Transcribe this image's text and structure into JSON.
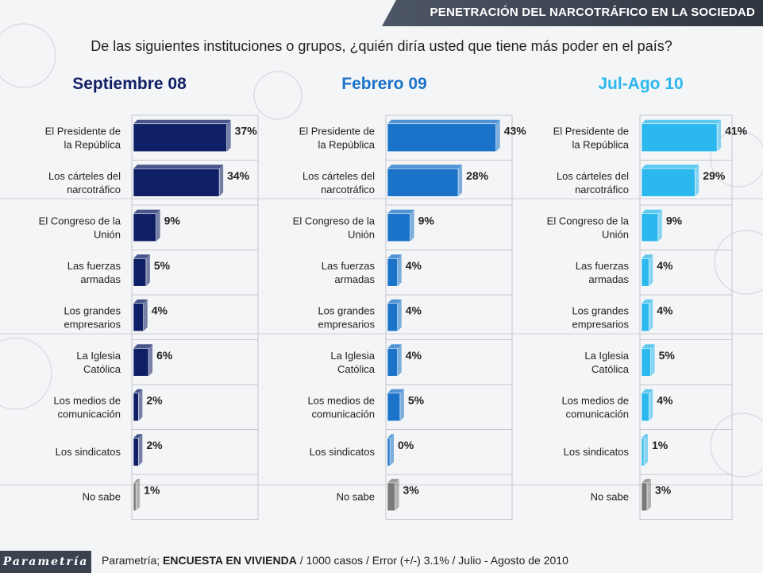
{
  "header": {
    "title": "PENETRACIÓN DEL NARCOTRÁFICO EN LA SOCIEDAD"
  },
  "question": "De las siguientes instituciones o grupos, ¿quién diría usted que tiene más poder en el país?",
  "footer": {
    "source": "Parametría; ",
    "survey": "ENCUESTA EN VIVIENDA",
    "details": " / 1000 casos / Error (+/-) 3.1% / Julio - Agosto de 2010",
    "logo": "Parametría"
  },
  "chart_data": [
    {
      "type": "bar",
      "orientation": "horizontal",
      "title": "Septiembre 08",
      "color": "#0f1f66",
      "categories": [
        "El Presidente de la República",
        "Los cárteles del narcotráfico",
        "El Congreso de la Unión",
        "Las fuerzas armadas",
        "Los grandes empresarios",
        "La Iglesia Católica",
        "Los medios de comunicación",
        "Los sindicatos",
        "No sabe"
      ],
      "values": [
        37,
        34,
        9,
        5,
        4,
        6,
        2,
        2,
        1
      ],
      "labels": [
        "37%",
        "34%",
        "9%",
        "5%",
        "4%",
        "6%",
        "2%",
        "2%",
        "1%"
      ],
      "xlim": [
        0,
        50
      ]
    },
    {
      "type": "bar",
      "orientation": "horizontal",
      "title": "Febrero 09",
      "color": "#1a73c9",
      "categories": [
        "El Presidente de la República",
        "Los cárteles del narcotráfico",
        "El Congreso de la Unión",
        "Las fuerzas armadas",
        "Los grandes empresarios",
        "La Iglesia Católica",
        "Los medios de comunicación",
        "Los sindicatos",
        "No sabe"
      ],
      "values": [
        43,
        28,
        9,
        4,
        4,
        4,
        5,
        0,
        3
      ],
      "labels": [
        "43%",
        "28%",
        "9%",
        "4%",
        "4%",
        "4%",
        "5%",
        "0%",
        "3%"
      ],
      "xlim": [
        0,
        50
      ]
    },
    {
      "type": "bar",
      "orientation": "horizontal",
      "title": "Jul-Ago 10",
      "color": "#2bb8ee",
      "categories": [
        "El Presidente de la República",
        "Los cárteles del narcotráfico",
        "El Congreso de la Unión",
        "Las fuerzas armadas",
        "Los grandes empresarios",
        "La Iglesia Católica",
        "Los medios de comunicación",
        "Los sindicatos",
        "No sabe"
      ],
      "values": [
        41,
        29,
        9,
        4,
        4,
        5,
        4,
        1,
        3
      ],
      "labels": [
        "41%",
        "29%",
        "9%",
        "4%",
        "4%",
        "5%",
        "4%",
        "1%",
        "3%"
      ],
      "xlim": [
        0,
        50
      ]
    }
  ],
  "nosabe_color": "#7a7a7a"
}
